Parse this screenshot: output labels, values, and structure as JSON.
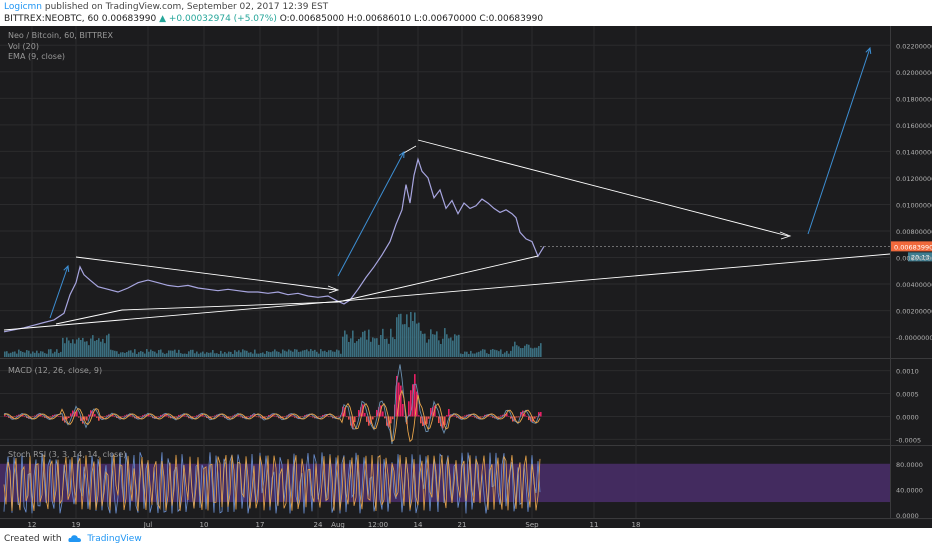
{
  "header": {
    "author": "Logicmn",
    "published_text": "published on TradingView.com, September 02, 2017 12:39 EST",
    "symbol": "BITTREX:NEOBTC, 60",
    "last": "0.00683990",
    "change": "+0.00032974 (+5.07%)",
    "o": "O:0.00685000",
    "h": "H:0.00686010",
    "l": "L:0.00670000",
    "c": "C:0.00683990"
  },
  "footer": {
    "created_with": "Created with",
    "brand": "TradingView"
  },
  "colors": {
    "background": "#1c1c1e",
    "grid": "#2b2b2d",
    "price_line": "#a7a5df",
    "volume": "#3f7d90",
    "macd_line": "#6a8fb0",
    "signal_line": "#e8a44a",
    "hist_pos": "#e91e63",
    "hist_neg": "#ef5350",
    "stoch_band": "#4a2e6b",
    "stoch_k": "#6a8fd0",
    "stoch_d": "#e8a44a",
    "white_line": "#ffffff",
    "blue_arrow": "#3d8fd4",
    "price_tag": "#f0693c"
  },
  "chart_data": [
    {
      "type": "line",
      "title": "Neo / Bitcoin, 60, BITTREX",
      "indicators": [
        "Vol (20)",
        "EMA (9, close)"
      ],
      "ylim": [
        -0.0015,
        0.023
      ],
      "y_ticks": [
        "0.02200000",
        "0.02000000",
        "0.01800000",
        "0.01600000",
        "0.01400000",
        "0.01200000",
        "0.01000000",
        "0.00800000",
        "0.00600000",
        "0.00400000",
        "0.00200000",
        "-0.00000000"
      ],
      "x_ticks": [
        "12",
        "19",
        "Jul",
        "10",
        "17",
        "24",
        "Aug",
        "12:00",
        "14",
        "21",
        "Sep",
        "11",
        "18"
      ],
      "last_price_label": "0.00683990",
      "volume_label": "20.13",
      "price_points": [
        [
          0,
          0.0004
        ],
        [
          10,
          0.00055
        ],
        [
          20,
          0.0007
        ],
        [
          30,
          0.0009
        ],
        [
          40,
          0.0011
        ],
        [
          50,
          0.0013
        ],
        [
          60,
          0.0018
        ],
        [
          66,
          0.0032
        ],
        [
          72,
          0.0041
        ],
        [
          76,
          0.0053
        ],
        [
          80,
          0.0047
        ],
        [
          86,
          0.0043
        ],
        [
          94,
          0.0038
        ],
        [
          104,
          0.0036
        ],
        [
          114,
          0.0034
        ],
        [
          124,
          0.0037
        ],
        [
          134,
          0.0041
        ],
        [
          144,
          0.0043
        ],
        [
          154,
          0.0041
        ],
        [
          164,
          0.0039
        ],
        [
          174,
          0.0038
        ],
        [
          184,
          0.0039
        ],
        [
          194,
          0.0037
        ],
        [
          204,
          0.0036
        ],
        [
          214,
          0.0035
        ],
        [
          224,
          0.0036
        ],
        [
          234,
          0.0035
        ],
        [
          244,
          0.0034
        ],
        [
          254,
          0.0034
        ],
        [
          264,
          0.0033
        ],
        [
          274,
          0.0034
        ],
        [
          284,
          0.0032
        ],
        [
          294,
          0.0033
        ],
        [
          304,
          0.0031
        ],
        [
          314,
          0.003
        ],
        [
          324,
          0.0031
        ],
        [
          334,
          0.0027
        ],
        [
          340,
          0.0025
        ],
        [
          346,
          0.0028
        ],
        [
          354,
          0.0036
        ],
        [
          362,
          0.0045
        ],
        [
          370,
          0.0053
        ],
        [
          378,
          0.0062
        ],
        [
          386,
          0.0072
        ],
        [
          392,
          0.0085
        ],
        [
          398,
          0.0096
        ],
        [
          402,
          0.0115
        ],
        [
          406,
          0.0101
        ],
        [
          410,
          0.0122
        ],
        [
          414,
          0.0134
        ],
        [
          418,
          0.0125
        ],
        [
          424,
          0.012
        ],
        [
          430,
          0.0105
        ],
        [
          436,
          0.0111
        ],
        [
          442,
          0.0097
        ],
        [
          448,
          0.0103
        ],
        [
          454,
          0.0093
        ],
        [
          460,
          0.0101
        ],
        [
          466,
          0.0097
        ],
        [
          472,
          0.0099
        ],
        [
          478,
          0.0104
        ],
        [
          484,
          0.0101
        ],
        [
          490,
          0.0097
        ],
        [
          496,
          0.0094
        ],
        [
          502,
          0.0096
        ],
        [
          508,
          0.0093
        ],
        [
          512,
          0.009
        ],
        [
          516,
          0.0079
        ],
        [
          522,
          0.0074
        ],
        [
          528,
          0.0072
        ],
        [
          534,
          0.0061
        ],
        [
          540,
          0.00684
        ]
      ]
    },
    {
      "type": "line",
      "title": "MACD (12, 26, close, 9)",
      "ylim": [
        -0.0006,
        0.0011
      ],
      "y_ticks": [
        "0.0010",
        "0.0005",
        "0.0000",
        "-0.0005"
      ]
    },
    {
      "type": "line",
      "title": "Stoch RSI (3, 3, 14, 14, close)",
      "ylim": [
        -5,
        100
      ],
      "y_ticks": [
        "80.0000",
        "40.0000",
        "0.0000"
      ]
    }
  ]
}
